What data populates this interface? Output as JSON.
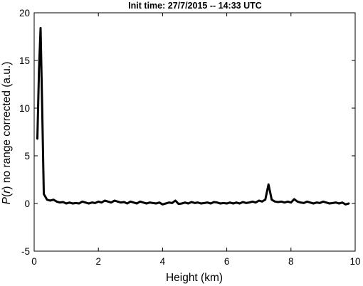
{
  "chart_data": {
    "type": "line",
    "title": "Init time: 27/7/2015 -- 14:33   UTC",
    "xlabel": "Height (km)",
    "ylabel": "P(r) no range corrected (a.u.)",
    "ylabel_parts": {
      "pre": "",
      "italic": "P",
      "mid": "(",
      "italic2": "r",
      "post": ") no range corrected (a.u.)"
    },
    "xlim": [
      0,
      10
    ],
    "ylim": [
      -5,
      20
    ],
    "xticks": [
      0,
      2,
      4,
      6,
      8,
      10
    ],
    "yticks": [
      -5,
      0,
      5,
      10,
      15,
      20
    ],
    "xtick_labels": [
      "0",
      "2",
      "4",
      "6",
      "8",
      "10"
    ],
    "ytick_labels": [
      "-5",
      "0",
      "5",
      "10",
      "15",
      "20"
    ],
    "grid": false,
    "series": [
      {
        "color": "#000000",
        "x": [
          0.1,
          0.15,
          0.2,
          0.25,
          0.3,
          0.4,
          0.5,
          0.6,
          0.7,
          0.8,
          0.9,
          1.0,
          1.1,
          1.2,
          1.3,
          1.4,
          1.5,
          1.6,
          1.7,
          1.8,
          1.9,
          2.0,
          2.1,
          2.2,
          2.3,
          2.4,
          2.5,
          2.6,
          2.7,
          2.8,
          2.9,
          3.0,
          3.1,
          3.2,
          3.3,
          3.4,
          3.5,
          3.6,
          3.7,
          3.8,
          3.9,
          4.0,
          4.1,
          4.2,
          4.3,
          4.4,
          4.5,
          4.6,
          4.7,
          4.8,
          4.9,
          5.0,
          5.1,
          5.2,
          5.3,
          5.4,
          5.5,
          5.6,
          5.7,
          5.8,
          5.9,
          6.0,
          6.1,
          6.2,
          6.3,
          6.4,
          6.5,
          6.6,
          6.7,
          6.8,
          6.9,
          7.0,
          7.1,
          7.2,
          7.3,
          7.4,
          7.5,
          7.6,
          7.7,
          7.8,
          7.9,
          8.0,
          8.1,
          8.2,
          8.3,
          8.4,
          8.5,
          8.6,
          8.7,
          8.8,
          8.9,
          9.0,
          9.1,
          9.2,
          9.3,
          9.4,
          9.5,
          9.6,
          9.7,
          9.8
        ],
        "y": [
          6.8,
          14.0,
          18.4,
          10.0,
          1.0,
          0.4,
          0.3,
          0.4,
          0.2,
          0.1,
          0.15,
          0.0,
          0.1,
          0.0,
          0.05,
          0.0,
          0.2,
          0.1,
          0.0,
          0.1,
          0.05,
          0.2,
          0.1,
          0.3,
          0.2,
          0.1,
          0.3,
          0.2,
          0.1,
          0.15,
          0.0,
          0.2,
          0.1,
          0.0,
          0.2,
          0.1,
          0.0,
          0.1,
          0.05,
          0.0,
          0.1,
          -0.1,
          0.0,
          0.1,
          0.05,
          0.3,
          -0.05,
          0.0,
          0.1,
          0.0,
          0.15,
          0.05,
          0.1,
          0.0,
          0.05,
          0.1,
          0.0,
          0.15,
          0.1,
          0.0,
          0.05,
          0.0,
          0.1,
          0.0,
          0.1,
          0.0,
          0.15,
          0.05,
          0.1,
          0.2,
          0.1,
          0.3,
          0.2,
          0.4,
          2.0,
          0.4,
          0.2,
          0.15,
          0.2,
          0.1,
          0.2,
          0.1,
          0.45,
          0.2,
          0.1,
          0.05,
          0.2,
          0.1,
          0.0,
          0.1,
          0.05,
          0.2,
          0.1,
          0.0,
          0.05,
          0.1,
          0.0,
          0.1,
          -0.1,
          0.0
        ]
      }
    ]
  }
}
